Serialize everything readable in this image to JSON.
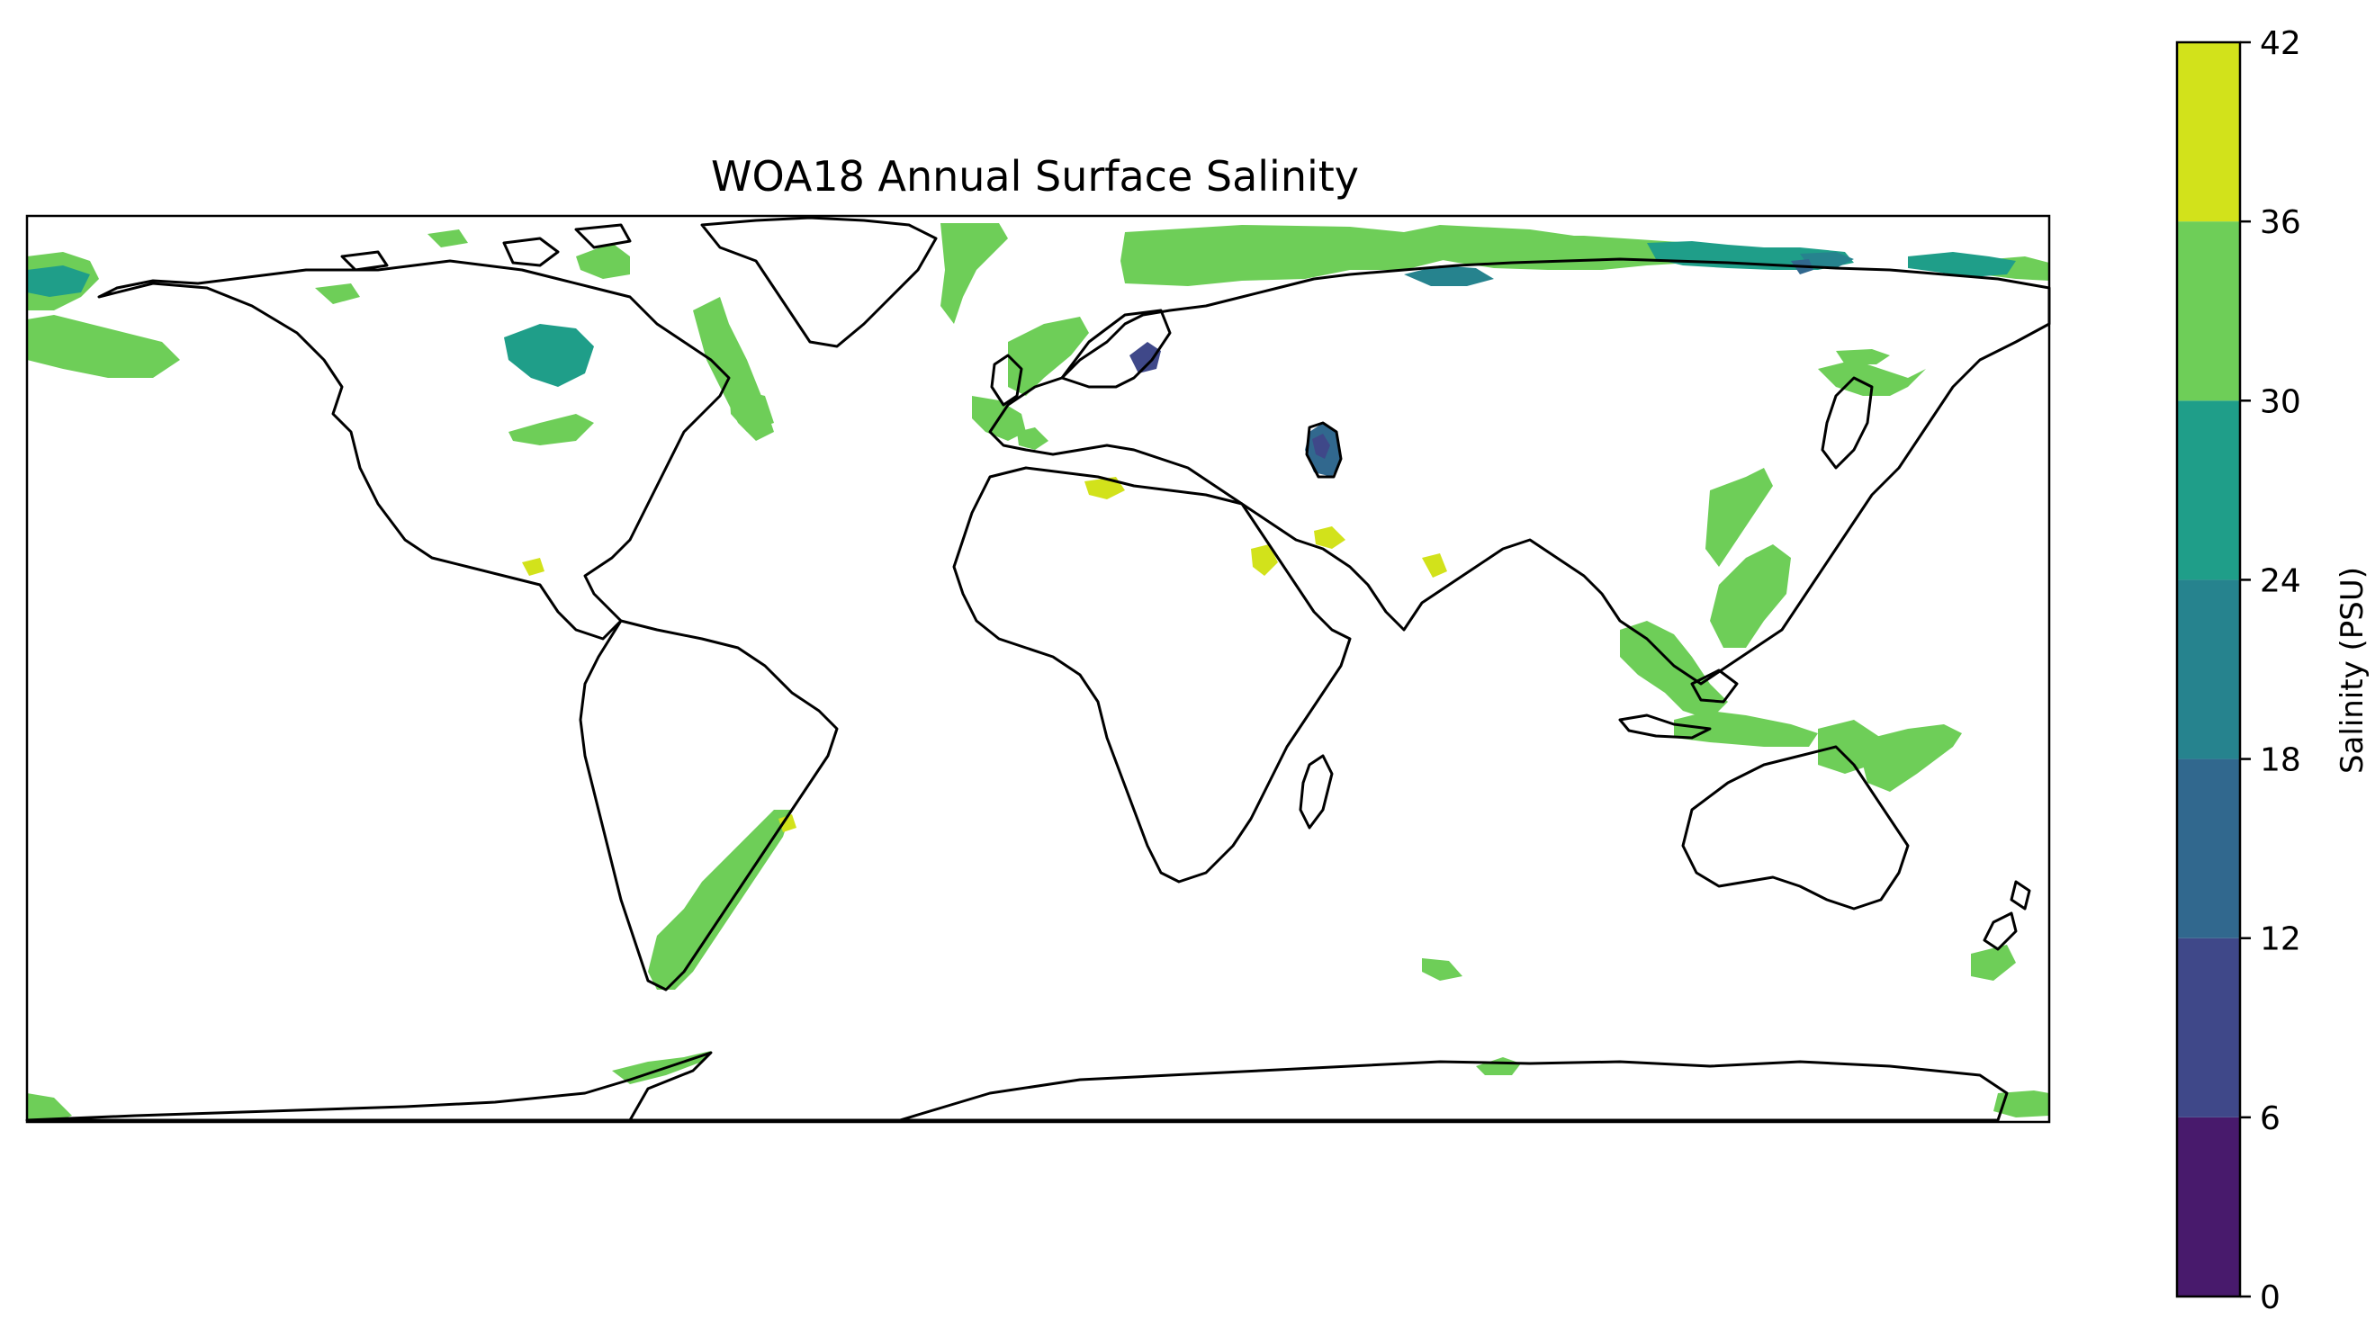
{
  "title": "WOA18 Annual Surface Salinity",
  "colorbar": {
    "label": "Salinity (PSU)",
    "ticks": [
      "0",
      "6",
      "12",
      "18",
      "24",
      "30",
      "36",
      "42"
    ],
    "levels": [
      {
        "from": 0,
        "to": 6,
        "color": "#481a6c"
      },
      {
        "from": 6,
        "to": 12,
        "color": "#3f4889"
      },
      {
        "from": 12,
        "to": 18,
        "color": "#31688e"
      },
      {
        "from": 18,
        "to": 24,
        "color": "#26838e"
      },
      {
        "from": 24,
        "to": 30,
        "color": "#1f9e89"
      },
      {
        "from": 30,
        "to": 36,
        "color": "#6ece58"
      },
      {
        "from": 36,
        "to": 42,
        "color": "#d2e21b"
      }
    ]
  },
  "map": {
    "projection": "PlateCarree",
    "extent": {
      "lon": [
        -180,
        180
      ],
      "lat": [
        -90,
        90
      ]
    },
    "coastline_color": "#000000",
    "ocean_fill": "#ffffff"
  }
}
